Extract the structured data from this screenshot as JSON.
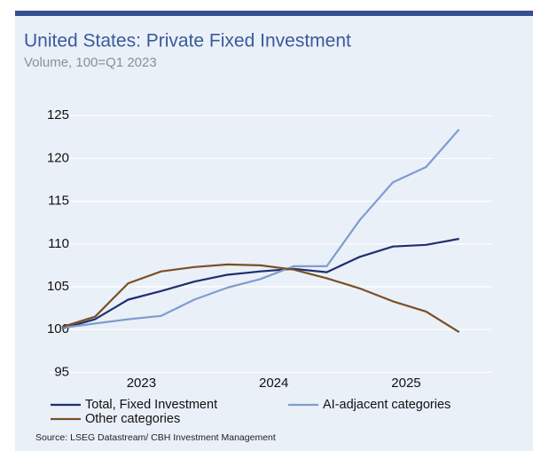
{
  "chart_data": {
    "type": "line",
    "title": "United States: Private Fixed Investment",
    "subtitle": "Volume, 100=Q1 2023",
    "source": "Source: LSEG Datastream/ CBH Investment Management",
    "x": [
      2022.4,
      2022.65,
      2022.9,
      2023.15,
      2023.4,
      2023.65,
      2023.9,
      2024.15,
      2024.4,
      2024.65,
      2024.9,
      2025.15,
      2025.4
    ],
    "series": [
      {
        "name": "Total, Fixed Investment",
        "color": "#1f2f6e",
        "values": [
          100.1,
          101.2,
          103.5,
          104.5,
          105.6,
          106.4,
          106.8,
          107.1,
          106.7,
          108.5,
          109.7,
          109.9,
          110.6
        ]
      },
      {
        "name": "AI-adjacent categories",
        "color": "#7f9ccf",
        "values": [
          100.2,
          100.7,
          101.2,
          101.6,
          103.5,
          104.9,
          105.9,
          107.4,
          107.4,
          112.8,
          117.2,
          119.0,
          123.4
        ]
      },
      {
        "name": "Other categories",
        "color": "#7a4f24",
        "values": [
          100.3,
          101.5,
          105.4,
          106.8,
          107.3,
          107.6,
          107.5,
          107.0,
          106.0,
          104.8,
          103.3,
          102.1,
          99.7
        ]
      }
    ],
    "xlim": [
      2022.2,
      2025.65
    ],
    "xticks": [
      2023,
      2024,
      2025
    ],
    "ylim": [
      94,
      127
    ],
    "yticks": [
      95,
      100,
      105,
      110,
      115,
      120,
      125
    ],
    "grid": true
  }
}
